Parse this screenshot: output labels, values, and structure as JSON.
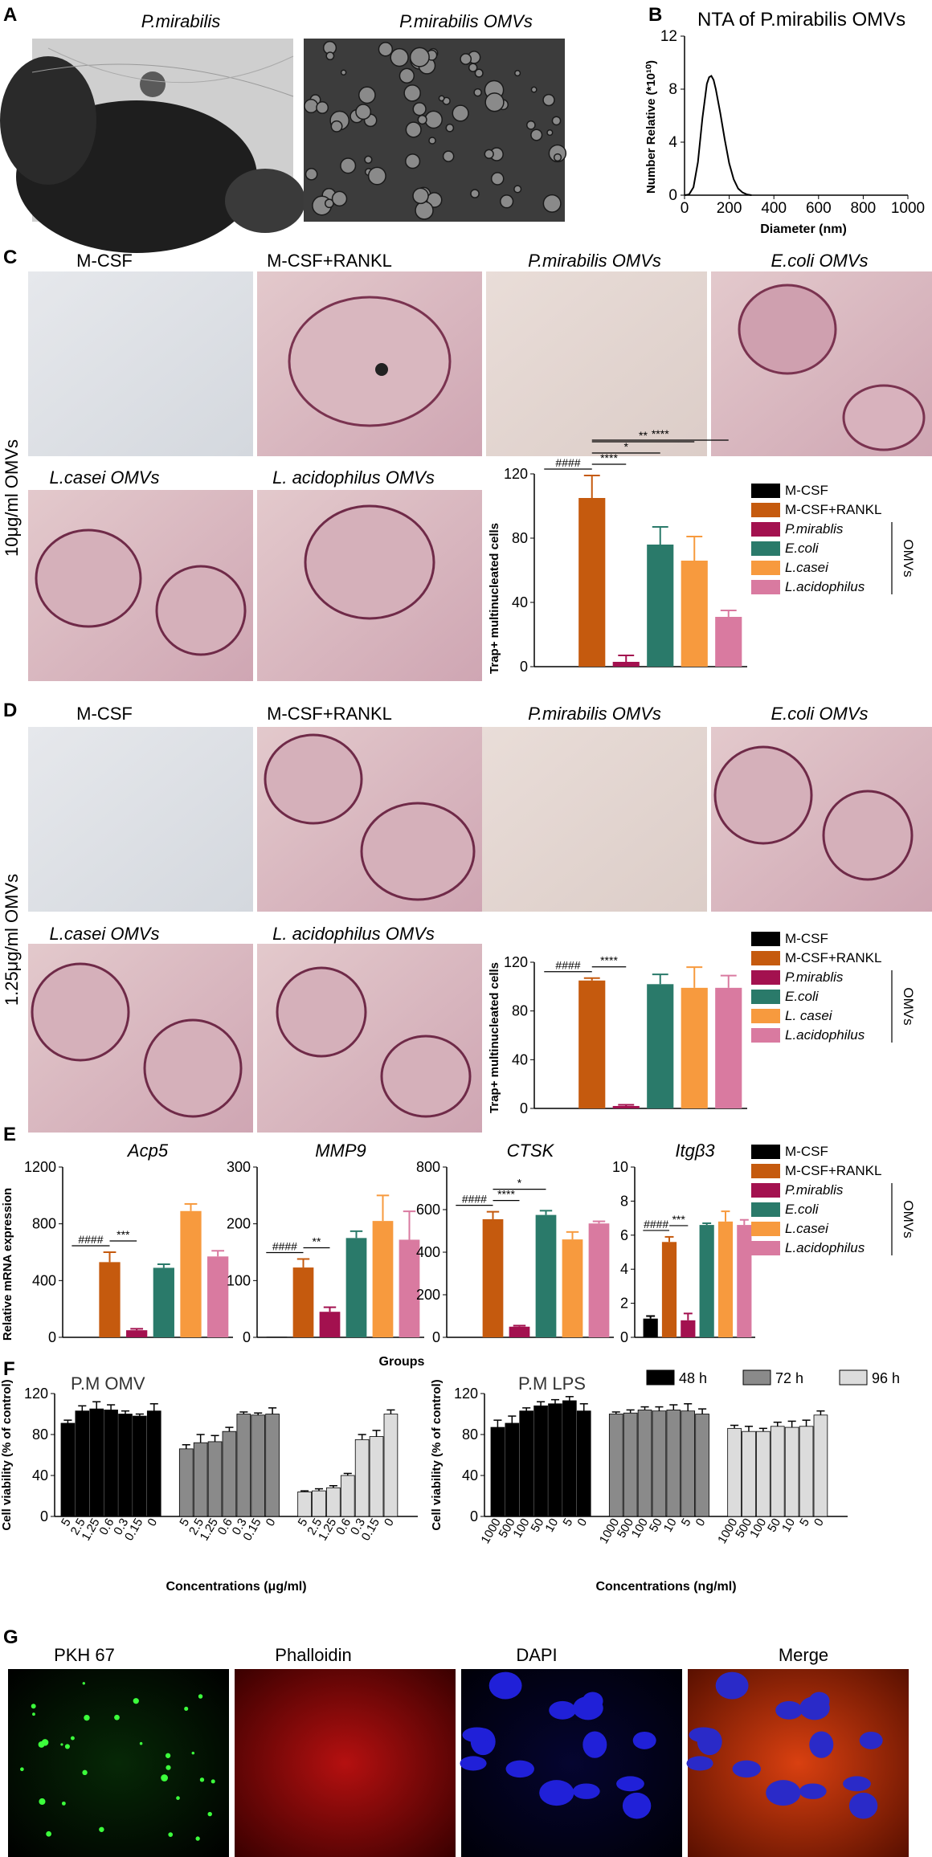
{
  "panels": {
    "A": {
      "letter": "A",
      "labels": [
        "P.mirabilis",
        "P.mirabilis OMVs"
      ]
    },
    "B": {
      "letter": "B",
      "chart_data": {
        "type": "line",
        "title": "NTA of P.mirabilis OMVs",
        "xlabel": "Diameter (nm)",
        "ylabel": "Number Relative (*10¹⁰)",
        "xlim": [
          0,
          1000
        ],
        "ylim": [
          0,
          12
        ],
        "xticks": [
          "0",
          "200",
          "400",
          "600",
          "800",
          "1000"
        ],
        "yticks": [
          "0",
          "4",
          "8",
          "12"
        ],
        "x": [
          0,
          20,
          40,
          60,
          80,
          100,
          110,
          120,
          130,
          140,
          160,
          180,
          200,
          220,
          240,
          260,
          280,
          300
        ],
        "y": [
          0,
          0.05,
          0.6,
          2.5,
          5.8,
          8.4,
          8.9,
          9.0,
          8.7,
          8.0,
          6.2,
          4.2,
          2.4,
          1.2,
          0.5,
          0.2,
          0.05,
          0
        ]
      }
    },
    "C": {
      "letter": "C",
      "side_label": "10μg/ml OMVs",
      "image_labels": [
        "M-CSF",
        "M-CSF+RANKL",
        "P.mirabilis OMVs",
        "E.coli  OMVs",
        "L.casei OMVs",
        "L. acidophilus OMVs"
      ],
      "chart_data": {
        "type": "bar",
        "ylabel": "Trap+ multinucleated cells",
        "ylim": [
          0,
          120
        ],
        "yticks": [
          "0",
          "40",
          "80",
          "120"
        ],
        "categories": [
          "M-CSF",
          "M-CSF+RANKL",
          "P.mirablis",
          "E.coli",
          "L.casei",
          "L.acidophilus"
        ],
        "values": [
          0,
          105,
          3,
          76,
          66,
          31
        ],
        "errors": [
          0,
          14,
          4,
          11,
          15,
          4
        ],
        "significance": [
          "####",
          "****",
          "*",
          "**",
          "****"
        ],
        "legend": [
          "M-CSF",
          "M-CSF+RANKL",
          "P.mirablis",
          "E.coli",
          "L.casei",
          "L.acidophilus"
        ],
        "legend_group": "OMVs"
      }
    },
    "D": {
      "letter": "D",
      "side_label": "1.25μg/ml OMVs",
      "image_labels": [
        "M-CSF",
        "M-CSF+RANKL",
        "P.mirabilis OMVs",
        "E.coli  OMVs",
        "L.casei OMVs",
        "L. acidophilus OMVs"
      ],
      "chart_data": {
        "type": "bar",
        "ylabel": "Trap+ multinucleated cells",
        "ylim": [
          0,
          120
        ],
        "yticks": [
          "0",
          "40",
          "80",
          "120"
        ],
        "categories": [
          "M-CSF",
          "M-CSF+RANKL",
          "P.mirablis",
          "E.coli",
          "L. casei",
          "L.acidophilus"
        ],
        "values": [
          0,
          105,
          2,
          102,
          99,
          99
        ],
        "errors": [
          0,
          2,
          1,
          8,
          17,
          10
        ],
        "significance": [
          "####",
          "****"
        ],
        "legend": [
          "M-CSF",
          "M-CSF+RANKL",
          "P.mirablis",
          "E.coli",
          "L. casei",
          "L.acidophilus"
        ],
        "legend_group": "OMVs"
      }
    },
    "E": {
      "letter": "E",
      "ylabel": "Relative mRNA expression",
      "xlabel": "Groups",
      "legend": [
        "M-CSF",
        "M-CSF+RANKL",
        "P.mirablis",
        "E.coli",
        "L.casei",
        "L.acidophilus"
      ],
      "legend_group": "OMVs",
      "chart_data": [
        {
          "type": "bar",
          "title": "Acp5",
          "ylim": [
            0,
            1200
          ],
          "yticks": [
            "0",
            "400",
            "800",
            "1200"
          ],
          "values": [
            0,
            530,
            50,
            490,
            890,
            570
          ],
          "errors": [
            0,
            70,
            10,
            25,
            50,
            40
          ],
          "significance": [
            "####",
            "***"
          ]
        },
        {
          "type": "bar",
          "title": "MMP9",
          "ylim": [
            0,
            300
          ],
          "yticks": [
            "0",
            "100",
            "200",
            "300"
          ],
          "values": [
            1,
            123,
            45,
            175,
            205,
            172
          ],
          "errors": [
            0,
            15,
            8,
            12,
            45,
            50
          ],
          "significance": [
            "####",
            "**"
          ]
        },
        {
          "type": "bar",
          "title": "CTSK",
          "ylim": [
            0,
            800
          ],
          "yticks": [
            "0",
            "200",
            "400",
            "600",
            "800"
          ],
          "values": [
            0,
            555,
            50,
            575,
            460,
            535
          ],
          "errors": [
            0,
            35,
            5,
            20,
            35,
            10
          ],
          "significance": [
            "####",
            "****",
            "*"
          ]
        },
        {
          "type": "bar",
          "title": "Itgβ3",
          "ylim": [
            0,
            10
          ],
          "yticks": [
            "0",
            "2",
            "4",
            "6",
            "8",
            "10"
          ],
          "values": [
            1.1,
            5.6,
            1.0,
            6.6,
            6.8,
            6.6
          ],
          "errors": [
            0.15,
            0.3,
            0.4,
            0.1,
            0.6,
            0.3
          ],
          "significance": [
            "####",
            "***"
          ]
        }
      ]
    },
    "F": {
      "letter": "F",
      "ylabel": "Cell viability (% of control)",
      "legend": [
        "48 h",
        "72 h",
        "96 h"
      ],
      "chart_data": [
        {
          "type": "bar",
          "title": "P.M OMV",
          "xlabel": "Concentrations (μg/ml)",
          "ylim": [
            0,
            120
          ],
          "yticks": [
            "0",
            "40",
            "80",
            "120"
          ],
          "categories": [
            "5",
            "2.5",
            "1.25",
            "0.6",
            "0.3",
            "0.15",
            "0"
          ],
          "series": [
            {
              "name": "48 h",
              "values": [
                91,
                103,
                105,
                104,
                100,
                98,
                103
              ],
              "errors": [
                3,
                5,
                7,
                5,
                3,
                2,
                7
              ]
            },
            {
              "name": "72 h",
              "values": [
                66,
                72,
                73,
                83,
                100,
                99,
                100
              ],
              "errors": [
                4,
                8,
                6,
                4,
                2,
                2,
                6
              ]
            },
            {
              "name": "96 h",
              "values": [
                24,
                25,
                28,
                40,
                75,
                78,
                100
              ],
              "errors": [
                1,
                2,
                2,
                2,
                5,
                6,
                4
              ]
            }
          ]
        },
        {
          "type": "bar",
          "title": "P.M  LPS",
          "xlabel": "Concentrations (ng/ml)",
          "ylim": [
            0,
            120
          ],
          "yticks": [
            "0",
            "40",
            "80",
            "120"
          ],
          "categories": [
            "1000",
            "500",
            "100",
            "50",
            "10",
            "5",
            "0"
          ],
          "series": [
            {
              "name": "48 h",
              "values": [
                87,
                91,
                103,
                108,
                110,
                113,
                103
              ],
              "errors": [
                7,
                7,
                3,
                4,
                4,
                4,
                7
              ]
            },
            {
              "name": "72 h",
              "values": [
                100,
                101,
                104,
                103,
                104,
                103,
                100
              ],
              "errors": [
                2,
                3,
                3,
                4,
                5,
                7,
                5
              ]
            },
            {
              "name": "96 h",
              "values": [
                86,
                83,
                83,
                88,
                87,
                88,
                99
              ],
              "errors": [
                3,
                5,
                3,
                4,
                6,
                6,
                4
              ]
            }
          ]
        }
      ]
    },
    "G": {
      "letter": "G",
      "labels": [
        "PKH 67",
        "Phalloidin",
        "DAPI",
        "Merge"
      ]
    }
  },
  "colors": [
    "#000000",
    "#c55a0e",
    "#a3114f",
    "#2a7a6a",
    "#f79a3e",
    "#d97aa0"
  ],
  "time_colors": [
    "#000000",
    "#8a8a8a",
    "#dcdcdc"
  ]
}
